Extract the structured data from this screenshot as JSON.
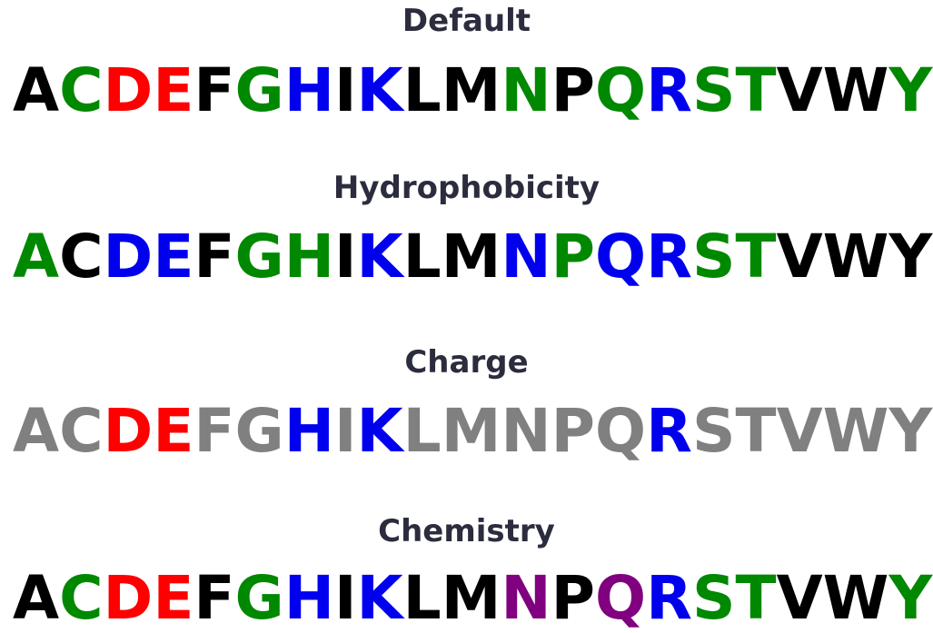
{
  "alphabet": [
    "A",
    "C",
    "D",
    "E",
    "F",
    "G",
    "H",
    "I",
    "K",
    "L",
    "M",
    "N",
    "P",
    "Q",
    "R",
    "S",
    "T",
    "V",
    "W",
    "Y"
  ],
  "palette": {
    "black": "#000000",
    "green": "#008800",
    "red": "#ff0000",
    "blue": "#0000ee",
    "gray": "#808080",
    "purple": "#800080"
  },
  "schemes": [
    {
      "title": "Default",
      "colors": [
        "black",
        "green",
        "red",
        "red",
        "black",
        "green",
        "blue",
        "black",
        "blue",
        "black",
        "black",
        "green",
        "black",
        "green",
        "blue",
        "green",
        "green",
        "black",
        "black",
        "green"
      ]
    },
    {
      "title": "Hydrophobicity",
      "colors": [
        "green",
        "black",
        "blue",
        "blue",
        "black",
        "green",
        "green",
        "black",
        "blue",
        "black",
        "black",
        "blue",
        "green",
        "blue",
        "blue",
        "green",
        "green",
        "black",
        "black",
        "black"
      ]
    },
    {
      "title": "Charge",
      "colors": [
        "gray",
        "gray",
        "red",
        "red",
        "gray",
        "gray",
        "blue",
        "gray",
        "blue",
        "gray",
        "gray",
        "gray",
        "gray",
        "gray",
        "blue",
        "gray",
        "gray",
        "gray",
        "gray",
        "gray"
      ]
    },
    {
      "title": "Chemistry",
      "colors": [
        "black",
        "green",
        "red",
        "red",
        "black",
        "green",
        "blue",
        "black",
        "blue",
        "black",
        "black",
        "purple",
        "black",
        "purple",
        "blue",
        "green",
        "green",
        "black",
        "black",
        "green"
      ]
    }
  ]
}
